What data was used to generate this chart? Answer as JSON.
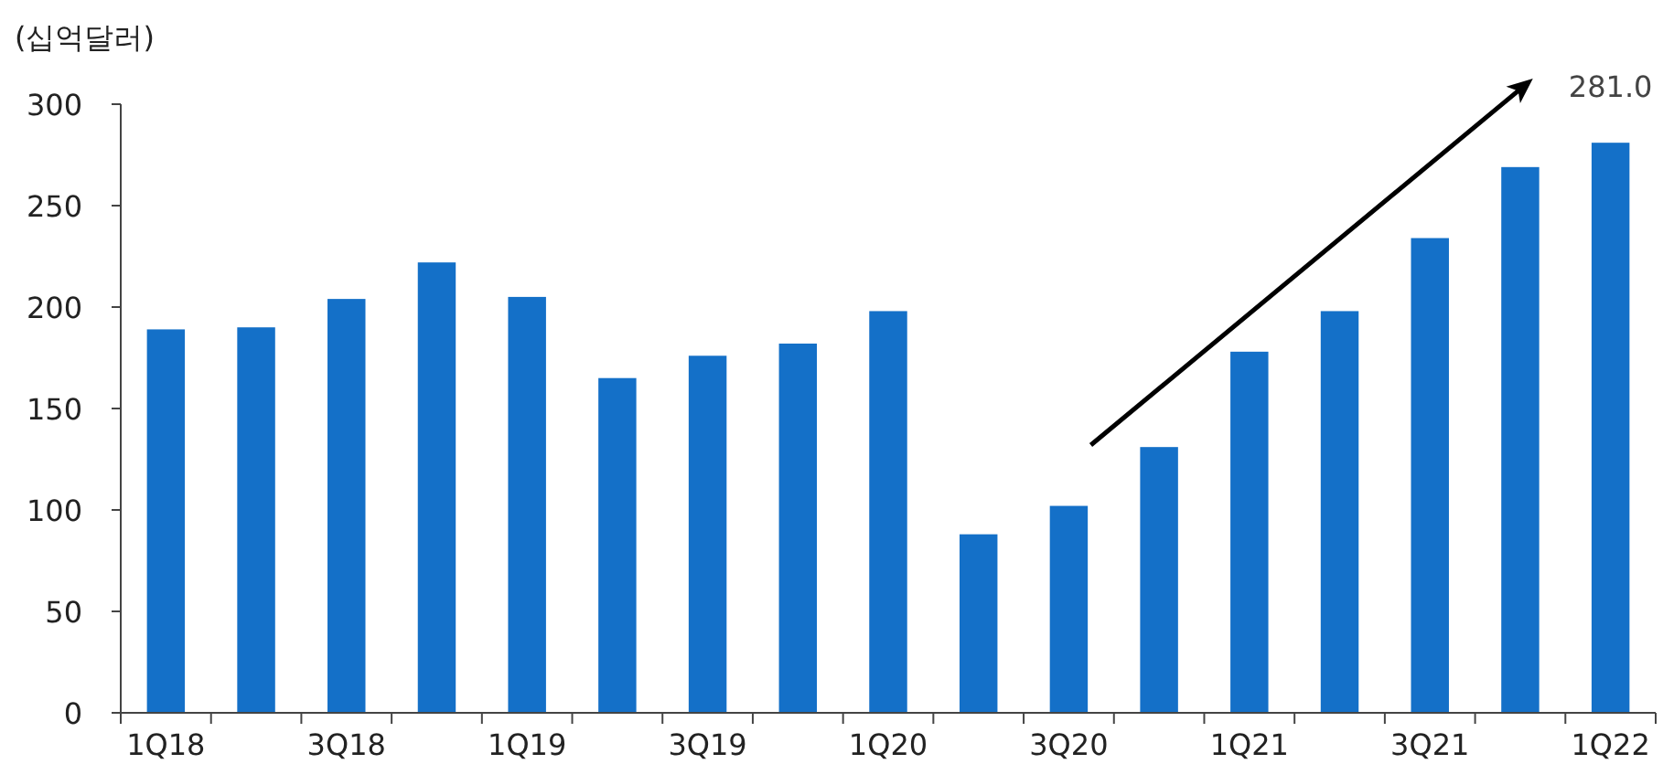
{
  "chart_data": {
    "type": "bar",
    "ylabel": "(십억달러)",
    "categories": [
      "1Q18",
      null,
      "3Q18",
      null,
      "1Q19",
      null,
      "3Q19",
      null,
      "1Q20",
      null,
      "3Q20",
      null,
      "1Q21",
      null,
      "3Q21",
      null,
      "1Q22"
    ],
    "values": [
      189,
      190,
      204,
      222,
      205,
      165,
      176,
      182,
      198,
      88,
      102,
      131,
      178,
      198,
      234,
      269,
      281.0
    ],
    "value_labels": [
      null,
      null,
      null,
      null,
      null,
      null,
      null,
      null,
      null,
      null,
      null,
      null,
      null,
      null,
      null,
      null,
      "281.0"
    ],
    "color": "#1470c8",
    "ylim": [
      0,
      300
    ],
    "yticks": [
      0,
      50,
      100,
      150,
      200,
      250,
      300
    ],
    "grid": false
  }
}
